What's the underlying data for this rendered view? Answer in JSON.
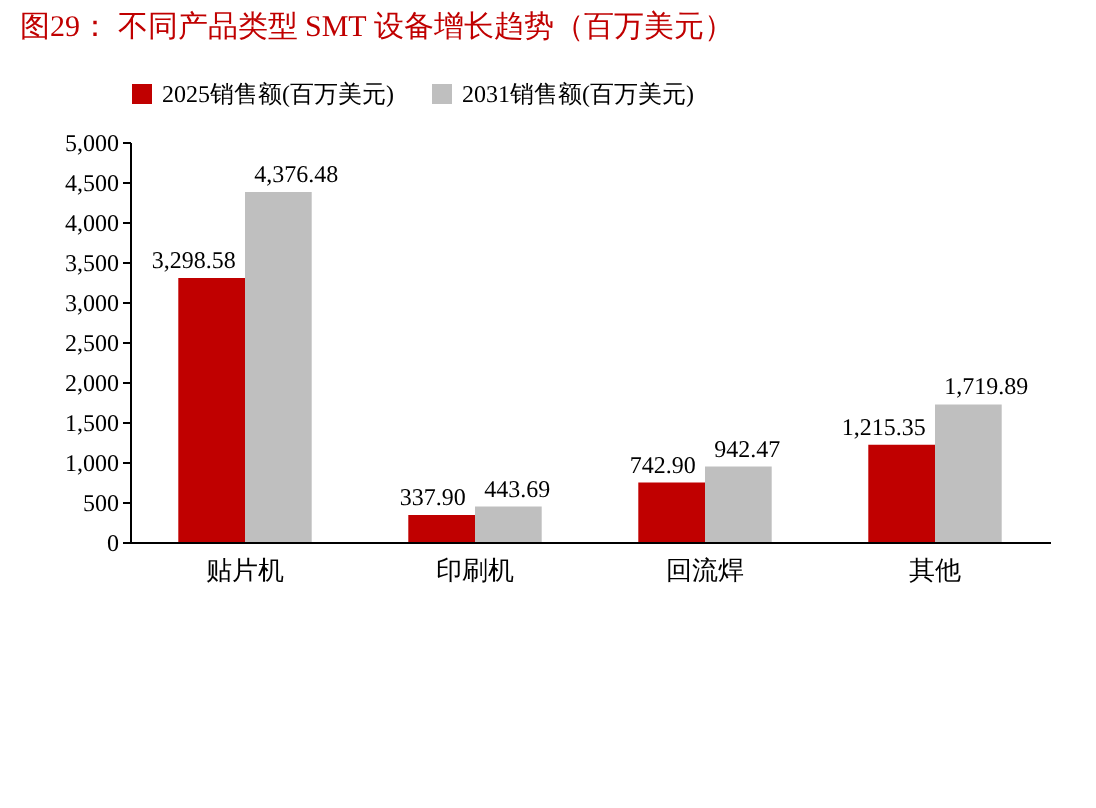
{
  "chart_data": {
    "type": "bar",
    "title": "图29：  不同产品类型 SMT 设备增长趋势（百万美元）",
    "categories": [
      "贴片机",
      "印刷机",
      "回流焊",
      "其他"
    ],
    "series": [
      {
        "name": "2025销售额(百万美元)",
        "color": "#c00000",
        "values": [
          3298.58,
          337.9,
          742.9,
          1215.35
        ],
        "value_labels": [
          "3,298.58",
          "337.90",
          "742.90",
          "1,215.35"
        ]
      },
      {
        "name": "2031销售额(百万美元)",
        "color": "#bfbfbf",
        "values": [
          4376.48,
          443.69,
          942.47,
          1719.89
        ],
        "value_labels": [
          "4,376.48",
          "443.69",
          "942.47",
          "1,719.89"
        ]
      }
    ],
    "ylim": [
      0,
      5000
    ],
    "yticks": [
      0,
      {
        "value": 500,
        "label": "500"
      },
      {
        "value": 1000,
        "label": "1,000"
      },
      {
        "value": 1500,
        "label": "1,500"
      },
      {
        "value": 2000,
        "label": "2,000"
      },
      {
        "value": 2500,
        "label": "2,500"
      },
      {
        "value": 3000,
        "label": "3,000"
      },
      {
        "value": 3500,
        "label": "3,500"
      },
      {
        "value": 4000,
        "label": "4,000"
      },
      {
        "value": 4500,
        "label": "4,500"
      },
      {
        "value": 5000,
        "label": "5,000"
      }
    ],
    "legend": "top"
  }
}
